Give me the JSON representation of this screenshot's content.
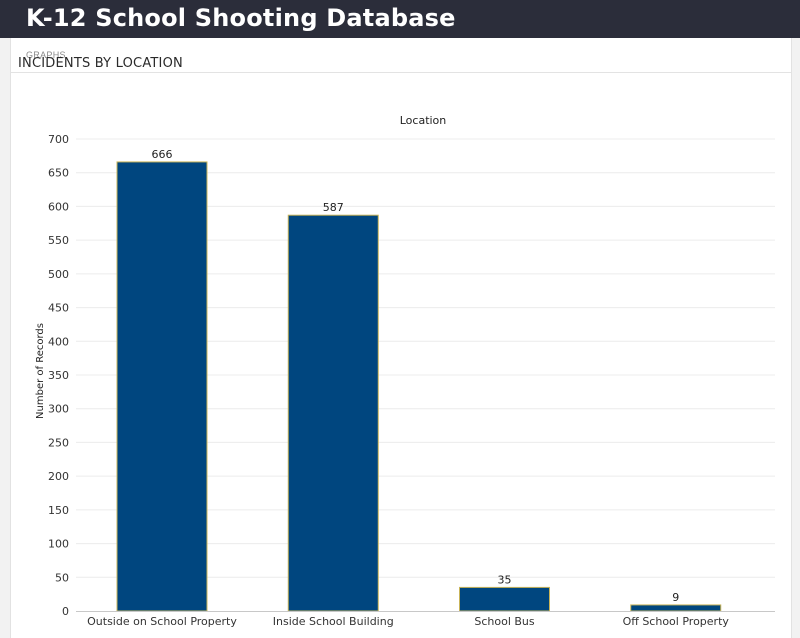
{
  "header": {
    "title": "K-12 School Shooting Database"
  },
  "tabs": [
    {
      "label": "GRAPHS"
    }
  ],
  "chart_heading": "INCIDENTS BY LOCATION",
  "colors": {
    "bar_fill": "#00467f",
    "bar_stroke": "#c9b458",
    "header_bg": "#2b2d3a"
  },
  "chart_data": {
    "type": "bar",
    "title": "Location",
    "xlabel": "",
    "ylabel": "Number of Records",
    "categories": [
      "Outside on School Property",
      "Inside School Building",
      "School Bus",
      "Off School Property"
    ],
    "values": [
      666,
      587,
      35,
      9
    ],
    "ylim": [
      0,
      700
    ],
    "yticks": [
      0,
      50,
      100,
      150,
      200,
      250,
      300,
      350,
      400,
      450,
      500,
      550,
      600,
      650,
      700
    ],
    "grid": true,
    "data_labels": true
  }
}
